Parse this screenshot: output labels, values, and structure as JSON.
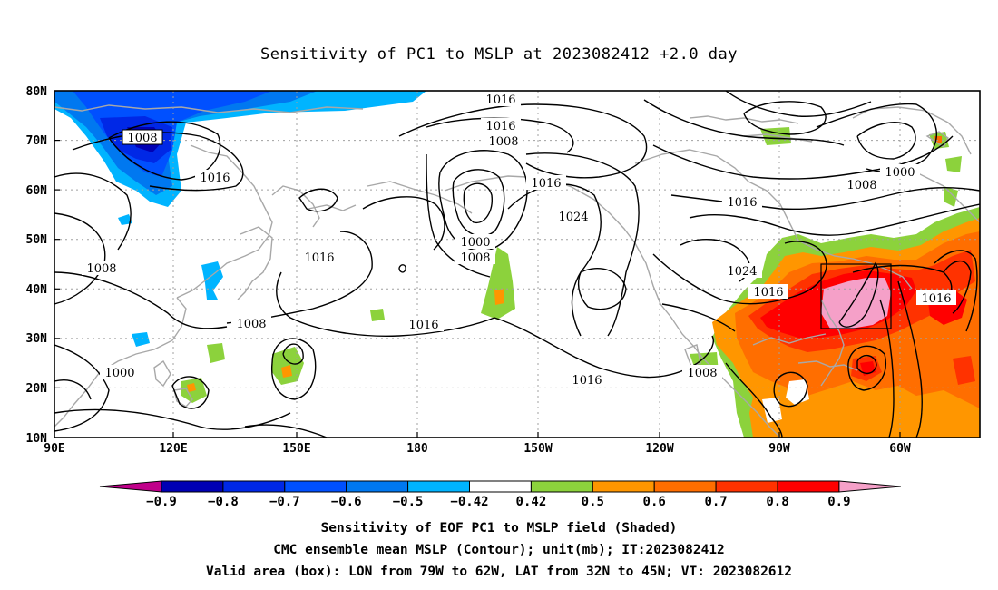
{
  "title": "Sensitivity of PC1 to MSLP at 2023082412 +2.0 day",
  "lat_labels": [
    "80N",
    "70N",
    "60N",
    "50N",
    "40N",
    "30N",
    "20N",
    "10N"
  ],
  "lon_labels": [
    "90E",
    "120E",
    "150E",
    "180",
    "150W",
    "120W",
    "90W",
    "60W"
  ],
  "contour_labels": {
    "c1": "1016",
    "c2": "1016",
    "c3": "1008",
    "c4": "1008",
    "c5": "1016",
    "c6": "1016",
    "c7": "1024",
    "c8": "1000",
    "c9": "1008",
    "c10": "1016",
    "c11": "1008",
    "c12": "1016",
    "c13": "1008",
    "c14": "1016",
    "c15": "1000",
    "c16": "1008",
    "c17": "1016",
    "c18": "1024",
    "c19": "1016",
    "c20": "1016",
    "c21": "1008",
    "c22": "1000"
  },
  "colorbar": {
    "labels": [
      "−0.9",
      "−0.8",
      "−0.7",
      "−0.6",
      "−0.5",
      "−0.42",
      "0.42",
      "0.5",
      "0.6",
      "0.7",
      "0.8",
      "0.9"
    ],
    "colors": [
      "#c0008a",
      "#0000b4",
      "#0028e6",
      "#0050ff",
      "#0078f0",
      "#00b4ff",
      "#ffffff",
      "#8cd23c",
      "#ff9600",
      "#ff6e00",
      "#ff3200",
      "#ff0000",
      "#f5a0c8"
    ]
  },
  "captions": {
    "line1": "Sensitivity of EOF PC1 to MSLP field (Shaded)",
    "line2": "CMC ensemble mean MSLP (Contour); unit(mb); IT:2023082412",
    "line3": "Valid area (box): LON from 79W to 62W, LAT from 32N to 45N; VT: 2023082612"
  },
  "colors": {
    "blue_dark": "#0028e6",
    "blue": "#0050ff",
    "blue_mid": "#0078f0",
    "blue_light": "#00b4ff",
    "green": "#8cd23c",
    "orange": "#ff9600",
    "orange_dark": "#ff6e00",
    "red_orange": "#ff3200",
    "red": "#ff0000",
    "pink": "#f5a0c8",
    "coast": "#a8a8a8",
    "contour": "#000000",
    "grid": "#a0a0a0"
  }
}
